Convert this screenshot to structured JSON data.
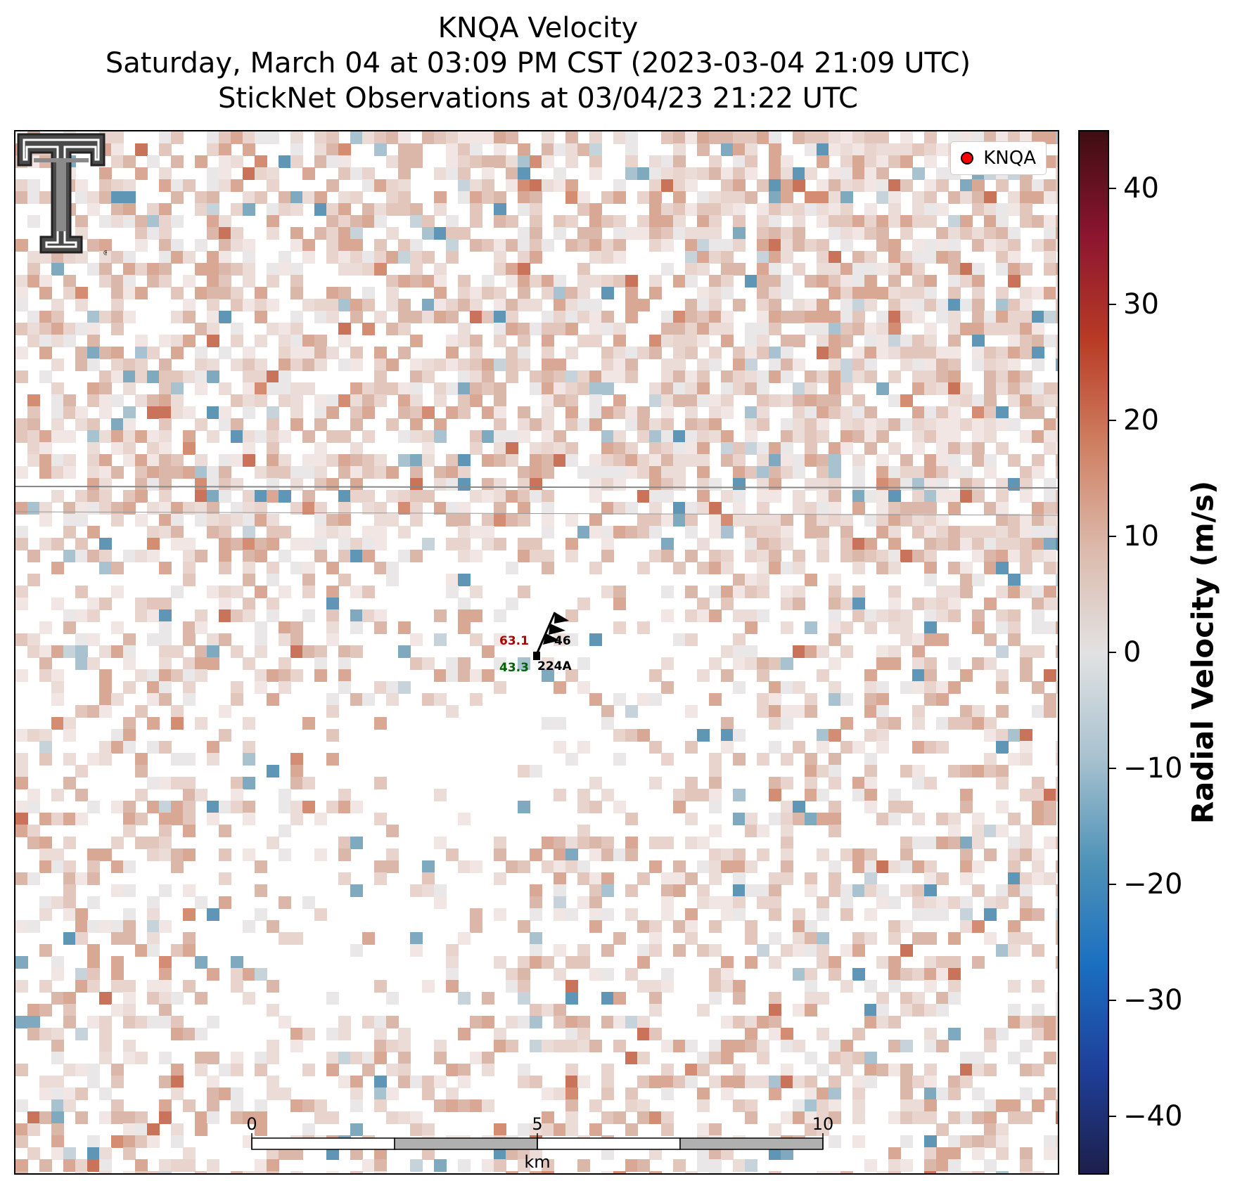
{
  "title": {
    "line1": "KNQA Velocity",
    "line2": "Saturday, March 04 at 03:09 PM CST (2023-03-04 21:09 UTC)",
    "line3": "StickNet Observations at 03/04/23 21:22 UTC"
  },
  "legend": {
    "label": "KNQA",
    "marker_color": "#ff0000"
  },
  "station": {
    "temperature": "63.1",
    "temperature_color": "#b20000",
    "dewpoint": "43.3",
    "dewpoint_color": "#006400",
    "id_top": "46",
    "id_bottom": "224A"
  },
  "scalebar": {
    "unit": "km",
    "labels": [
      "0",
      "5",
      "10"
    ]
  },
  "colorbar": {
    "label": "Radial Velocity (m/s)",
    "min": -45,
    "max": 45,
    "ticks": [
      "40",
      "30",
      "20",
      "10",
      "0",
      "−10",
      "−20",
      "−30",
      "−40"
    ],
    "tick_values": [
      40,
      30,
      20,
      10,
      0,
      -10,
      -20,
      -30,
      -40
    ],
    "colors": [
      "#1d1f4a",
      "#1e3f9a",
      "#1a6fc0",
      "#4f93b8",
      "#a9c2cf",
      "#e2e2e2",
      "#dcb9ab",
      "#cf7f61",
      "#b83b25",
      "#8c1530",
      "#3e0d12"
    ]
  },
  "logo": {
    "name": "Texas Tech Double T"
  }
}
